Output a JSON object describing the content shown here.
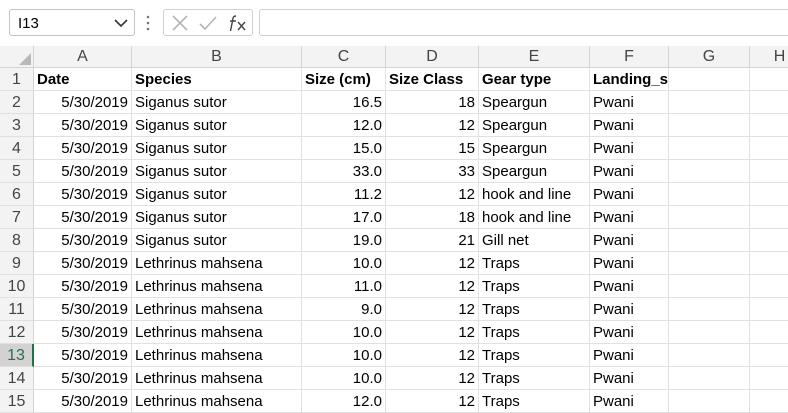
{
  "formula_bar": {
    "name_box": "I13",
    "formula": ""
  },
  "icons": {
    "name_box_dropdown": "chevron-down-icon",
    "more_options": "vertical-dots-icon",
    "cancel": "x-icon",
    "enter": "checkmark-icon",
    "insert_function": "fx-icon",
    "select_all": "select-all-triangle-icon"
  },
  "colors": {
    "accent": "#217346"
  },
  "grid": {
    "columns": [
      "A",
      "B",
      "C",
      "D",
      "E",
      "F",
      "G",
      "H"
    ],
    "row_numbers": [
      "1",
      "2",
      "3",
      "4",
      "5",
      "6",
      "7",
      "8",
      "9",
      "10",
      "11",
      "12",
      "13",
      "14",
      "15"
    ],
    "active_row": "13",
    "header_row": [
      "Date",
      "Species",
      "Size (cm)",
      "Size Class",
      "Gear type",
      "Landing_site"
    ],
    "rows": [
      [
        "5/30/2019",
        "Siganus sutor",
        "16.5",
        "18",
        "Speargun",
        "Pwani"
      ],
      [
        "5/30/2019",
        "Siganus sutor",
        "12.0",
        "12",
        "Speargun",
        "Pwani"
      ],
      [
        "5/30/2019",
        "Siganus sutor",
        "15.0",
        "15",
        "Speargun",
        "Pwani"
      ],
      [
        "5/30/2019",
        "Siganus sutor",
        "33.0",
        "33",
        "Speargun",
        "Pwani"
      ],
      [
        "5/30/2019",
        "Siganus sutor",
        "11.2",
        "12",
        "hook and line",
        "Pwani"
      ],
      [
        "5/30/2019",
        "Siganus sutor",
        "17.0",
        "18",
        "hook and line",
        "Pwani"
      ],
      [
        "5/30/2019",
        "Siganus sutor",
        "19.0",
        "21",
        "Gill net",
        "Pwani"
      ],
      [
        "5/30/2019",
        "Lethrinus mahsena",
        "10.0",
        "12",
        "Traps",
        "Pwani"
      ],
      [
        "5/30/2019",
        "Lethrinus mahsena",
        "11.0",
        "12",
        "Traps",
        "Pwani"
      ],
      [
        "5/30/2019",
        "Lethrinus mahsena",
        "9.0",
        "12",
        "Traps",
        "Pwani"
      ],
      [
        "5/30/2019",
        "Lethrinus mahsena",
        "10.0",
        "12",
        "Traps",
        "Pwani"
      ],
      [
        "5/30/2019",
        "Lethrinus mahsena",
        "10.0",
        "12",
        "Traps",
        "Pwani"
      ],
      [
        "5/30/2019",
        "Lethrinus mahsena",
        "10.0",
        "12",
        "Traps",
        "Pwani"
      ],
      [
        "5/30/2019",
        "Lethrinus mahsena",
        "12.0",
        "12",
        "Traps",
        "Pwani"
      ]
    ]
  }
}
